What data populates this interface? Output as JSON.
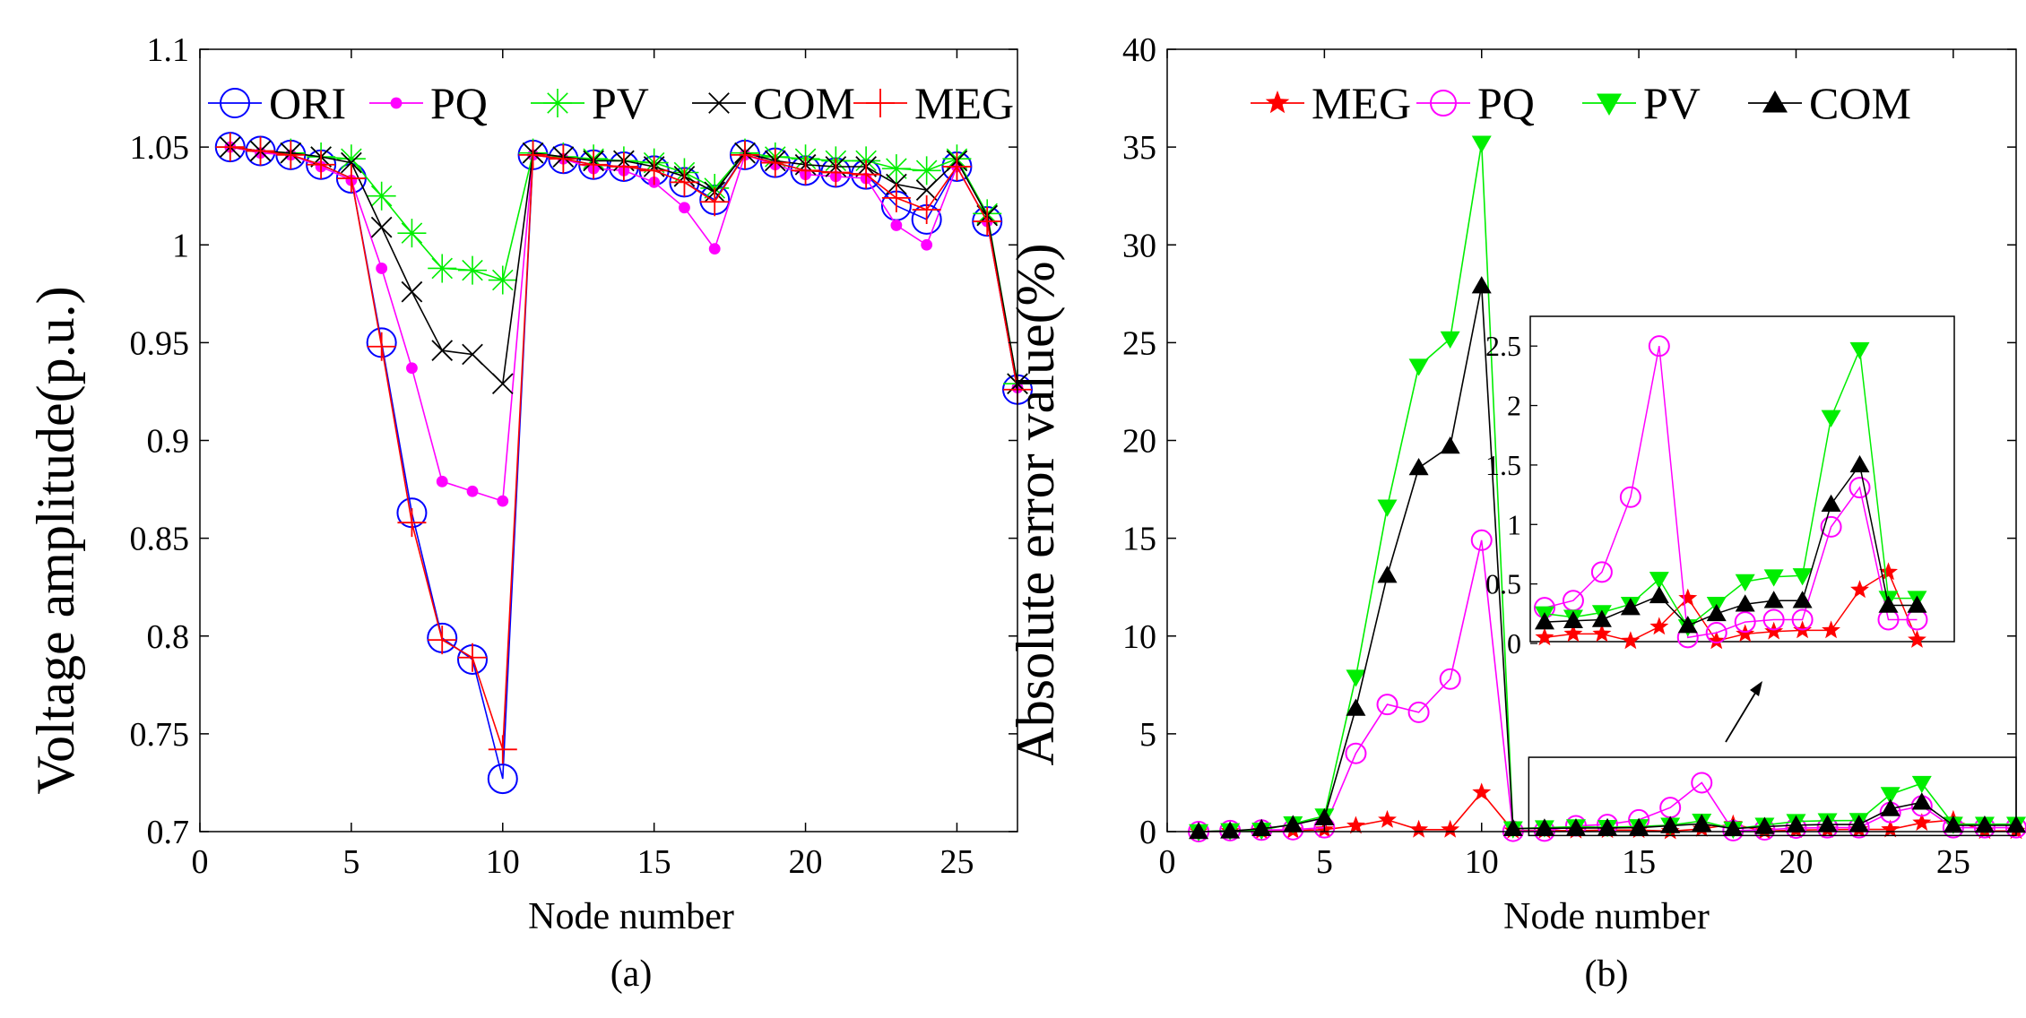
{
  "chart_data": [
    {
      "id": "a",
      "type": "line",
      "caption": "(a)",
      "title": "",
      "xlabel": "Node number",
      "ylabel": "Voltage amplitude(p.u.)",
      "xlim": [
        0,
        27
      ],
      "ylim": [
        0.7,
        1.1
      ],
      "xticks": [
        0,
        5,
        10,
        15,
        20,
        25
      ],
      "yticks": [
        0.7,
        0.75,
        0.8,
        0.85,
        0.9,
        0.95,
        1,
        1.05,
        1.1
      ],
      "ytick_labels": [
        "0.7",
        "0.75",
        "0.8",
        "0.85",
        "0.9",
        "0.95",
        "1",
        "1.05",
        "1.1"
      ],
      "legend_position": "top",
      "x": [
        1,
        2,
        3,
        4,
        5,
        6,
        7,
        8,
        9,
        10,
        11,
        12,
        13,
        14,
        15,
        16,
        17,
        18,
        19,
        20,
        21,
        22,
        23,
        24,
        25,
        26,
        27
      ],
      "series": [
        {
          "name": "ORI",
          "color": "#0000ff",
          "marker": "circle",
          "values": [
            1.05,
            1.048,
            1.046,
            1.041,
            1.034,
            0.95,
            0.863,
            0.799,
            0.788,
            0.727,
            1.046,
            1.044,
            1.041,
            1.04,
            1.038,
            1.032,
            1.023,
            1.046,
            1.042,
            1.038,
            1.037,
            1.036,
            1.02,
            1.013,
            1.04,
            1.012,
            0.926
          ]
        },
        {
          "name": "PQ",
          "color": "#ff00ff",
          "marker": "dot",
          "values": [
            1.05,
            1.047,
            1.046,
            1.04,
            1.033,
            0.988,
            0.937,
            0.879,
            0.874,
            0.869,
            1.046,
            1.044,
            1.039,
            1.038,
            1.032,
            1.019,
            0.998,
            1.046,
            1.041,
            1.036,
            1.035,
            1.034,
            1.01,
            1.0,
            1.04,
            1.012,
            0.927
          ]
        },
        {
          "name": "PV",
          "color": "#00ee00",
          "marker": "asterisk",
          "values": [
            1.05,
            1.048,
            1.047,
            1.045,
            1.044,
            1.025,
            1.006,
            0.988,
            0.987,
            0.982,
            1.047,
            1.045,
            1.044,
            1.043,
            1.042,
            1.037,
            1.029,
            1.047,
            1.045,
            1.044,
            1.043,
            1.043,
            1.039,
            1.038,
            1.044,
            1.016,
            0.929
          ]
        },
        {
          "name": "COM",
          "color": "#000000",
          "marker": "cross",
          "values": [
            1.05,
            1.048,
            1.047,
            1.045,
            1.042,
            1.009,
            0.976,
            0.946,
            0.944,
            0.929,
            1.047,
            1.045,
            1.043,
            1.043,
            1.04,
            1.035,
            1.027,
            1.047,
            1.043,
            1.041,
            1.04,
            1.04,
            1.031,
            1.028,
            1.043,
            1.015,
            0.929
          ]
        },
        {
          "name": "MEG",
          "color": "#ff0000",
          "marker": "plus",
          "values": [
            1.05,
            1.048,
            1.046,
            1.041,
            1.034,
            0.948,
            0.858,
            0.798,
            0.789,
            0.742,
            1.046,
            1.044,
            1.041,
            1.04,
            1.038,
            1.032,
            1.022,
            1.046,
            1.042,
            1.038,
            1.037,
            1.036,
            1.024,
            1.018,
            1.04,
            1.012,
            0.926
          ]
        }
      ]
    },
    {
      "id": "b",
      "type": "line",
      "caption": "(b)",
      "title": "",
      "xlabel": "Node number",
      "ylabel": "Absolute error value(%)",
      "xlim": [
        0,
        27
      ],
      "ylim": [
        0,
        40
      ],
      "xticks": [
        0,
        5,
        10,
        15,
        20,
        25
      ],
      "yticks": [
        0,
        5,
        10,
        15,
        20,
        25,
        30,
        35,
        40
      ],
      "ytick_labels": [
        "0",
        "5",
        "10",
        "15",
        "20",
        "25",
        "30",
        "35",
        "40"
      ],
      "legend_position": "top",
      "x": [
        1,
        2,
        3,
        4,
        5,
        6,
        7,
        8,
        9,
        10,
        11,
        12,
        13,
        14,
        15,
        16,
        17,
        18,
        19,
        20,
        21,
        22,
        23,
        24,
        25,
        26,
        27
      ],
      "series": [
        {
          "name": "MEG",
          "color": "#ff0000",
          "marker": "star",
          "values": [
            0,
            0.02,
            0.03,
            0.05,
            0.1,
            0.3,
            0.6,
            0.1,
            0.1,
            2.0,
            0.05,
            0.05,
            0.05,
            0.08,
            0.08,
            0.02,
            0.14,
            0.38,
            0.02,
            0.08,
            0.1,
            0.11,
            0.11,
            0.45,
            0.6,
            0.03,
            0.03
          ]
        },
        {
          "name": "PQ",
          "color": "#ff00ff",
          "marker": "circle",
          "values": [
            0,
            0.05,
            0.08,
            0.1,
            0.2,
            4.0,
            6.5,
            6.1,
            7.8,
            14.9,
            0.02,
            0.03,
            0.3,
            0.36,
            0.6,
            1.23,
            2.5,
            0.05,
            0.09,
            0.18,
            0.2,
            0.2,
            0.98,
            1.31,
            0.2,
            0.2,
            0.2
          ]
        },
        {
          "name": "PV",
          "color": "#00ee00",
          "marker": "triangle-down",
          "values": [
            0,
            0.05,
            0.08,
            0.4,
            0.8,
            7.9,
            16.6,
            23.8,
            25.2,
            35.2,
            0.15,
            0.2,
            0.25,
            0.22,
            0.26,
            0.33,
            0.54,
            0.14,
            0.33,
            0.52,
            0.56,
            0.57,
            1.9,
            2.47,
            0.38,
            0.38,
            0.38
          ]
        },
        {
          "name": "COM",
          "color": "#000000",
          "marker": "triangle-up",
          "values": [
            0,
            0.03,
            0.15,
            0.35,
            0.7,
            6.3,
            13.1,
            18.6,
            19.7,
            27.9,
            0.15,
            0.17,
            0.18,
            0.19,
            0.2,
            0.3,
            0.4,
            0.15,
            0.25,
            0.33,
            0.36,
            0.36,
            1.17,
            1.5,
            0.32,
            0.32,
            0.32
          ]
        }
      ],
      "inset": {
        "xlim": [
          12.5,
          27.3
        ],
        "ylim": [
          0,
          2.75
        ],
        "yticks": [
          0,
          0.5,
          1,
          1.5,
          2,
          2.5
        ],
        "ytick_labels": [
          "0",
          "0.5",
          "1",
          "1.5",
          "2",
          "2.5"
        ],
        "x_from": 13,
        "x_to": 26,
        "zoom_xlim": [
          11.5,
          27
        ],
        "zoom_ylim": [
          -0.2,
          3.8
        ]
      }
    }
  ]
}
